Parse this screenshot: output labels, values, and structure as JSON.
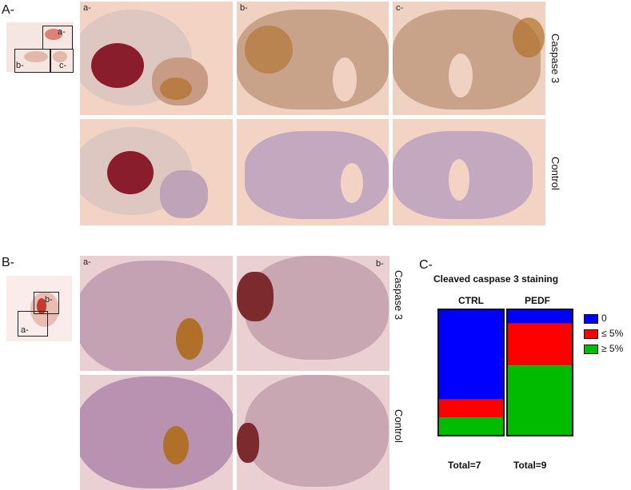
{
  "panelA": {
    "letter": "A-",
    "thumb_labels": [
      "a-",
      "b-",
      "c-"
    ],
    "columns": [
      "a-",
      "b-",
      "c-"
    ],
    "row_labels": [
      "Caspase 3",
      "Control"
    ]
  },
  "panelB": {
    "letter": "B-",
    "thumb_labels": [
      "b-",
      "a-"
    ],
    "columns": [
      "a-",
      "b-"
    ],
    "row_labels": [
      "Caspase 3",
      "Control"
    ]
  },
  "panelC": {
    "letter": "C-"
  },
  "chart_data": {
    "type": "bar",
    "stacked": true,
    "title": "Cleaved caspase 3 staining",
    "categories": [
      "CTRL",
      "PEDF"
    ],
    "totals": [
      "Total=7",
      "Total=9"
    ],
    "series": [
      {
        "name": "0",
        "color": "#0000ff",
        "values": [
          71.4,
          11.1
        ]
      },
      {
        "name": "≤ 5%",
        "color": "#ff0000",
        "values": [
          14.3,
          33.3
        ]
      },
      {
        "name": "≥ 5%",
        "color": "#00bb00",
        "values": [
          14.3,
          55.6
        ]
      }
    ],
    "ylim": [
      0,
      100
    ],
    "legend": "right"
  },
  "colors": {
    "tissue_bg": "#f3d7c8",
    "tissue": "#c9a8ba",
    "stain_brown": "#b0702a",
    "stain_red": "#8a1d2c"
  }
}
